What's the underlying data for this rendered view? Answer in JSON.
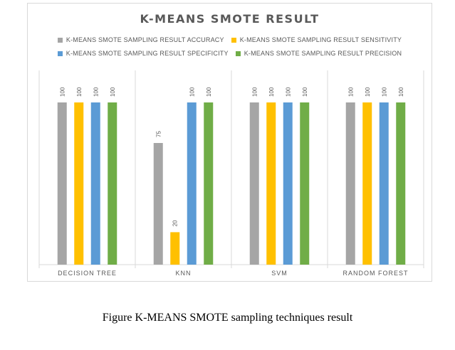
{
  "chart_data": {
    "type": "bar",
    "title": "K-MEANS SMOTE RESULT",
    "categories": [
      "DECISION TREE",
      "KNN",
      "SVM",
      "RANDOM FOREST"
    ],
    "series": [
      {
        "name": "K-MEANS SMOTE SAMPLING RESULT ACCURACY",
        "color": "#a5a5a5",
        "values": [
          100,
          75,
          100,
          100
        ]
      },
      {
        "name": "K-MEANS SMOTE SAMPLING RESULT SENSITIVITY",
        "color": "#ffc000",
        "values": [
          100,
          20,
          100,
          100
        ]
      },
      {
        "name": "K-MEANS SMOTE SAMPLING RESULT SPECIFICITY",
        "color": "#5b9bd5",
        "values": [
          100,
          100,
          100,
          100
        ]
      },
      {
        "name": "K-MEANS SMOTE SAMPLING RESULT PRECISION",
        "color": "#70ad47",
        "values": [
          100,
          100,
          100,
          100
        ]
      }
    ],
    "ylim": [
      0,
      100
    ],
    "grid": false,
    "legend_position": "top",
    "data_labels": true
  },
  "caption": "Figure K-MEANS SMOTE sampling techniques result"
}
